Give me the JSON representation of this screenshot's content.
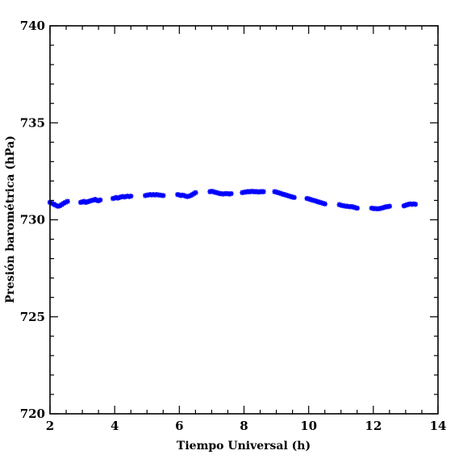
{
  "chart_data": {
    "type": "scatter",
    "title": "",
    "xlabel": "Tiempo Universal (h)",
    "ylabel": "Presión barométrica (hPa)",
    "xlim": [
      2,
      14
    ],
    "ylim": [
      720,
      740
    ],
    "x_ticks": [
      2,
      4,
      6,
      8,
      10,
      12,
      14
    ],
    "y_ticks": [
      720,
      725,
      730,
      735,
      740
    ],
    "x_minor_step": 0.5,
    "y_minor_step": 1,
    "grid": false,
    "legend": "none",
    "marker": "star",
    "color": "#0000ff",
    "series": [
      {
        "x": [
          2.0,
          2.06,
          2.12,
          2.18,
          2.24,
          2.3,
          2.36,
          2.42,
          2.48,
          2.54,
          2.95,
          3.0,
          3.05,
          3.1,
          3.15,
          3.2,
          3.25,
          3.3,
          3.35,
          3.4,
          3.45,
          3.5,
          3.55,
          3.95,
          4.0,
          4.05,
          4.1,
          4.15,
          4.2,
          4.25,
          4.3,
          4.35,
          4.4,
          4.45,
          4.5,
          4.95,
          5.0,
          5.05,
          5.1,
          5.15,
          5.2,
          5.25,
          5.3,
          5.35,
          5.4,
          5.45,
          5.5,
          5.95,
          6.0,
          6.05,
          6.1,
          6.15,
          6.2,
          6.25,
          6.3,
          6.35,
          6.4,
          6.45,
          6.5,
          6.95,
          7.0,
          7.05,
          7.1,
          7.15,
          7.2,
          7.25,
          7.3,
          7.35,
          7.4,
          7.45,
          7.5,
          7.55,
          7.6,
          7.95,
          8.0,
          8.05,
          8.1,
          8.15,
          8.2,
          8.25,
          8.3,
          8.35,
          8.4,
          8.45,
          8.5,
          8.55,
          8.6,
          8.95,
          9.0,
          9.05,
          9.1,
          9.15,
          9.2,
          9.25,
          9.3,
          9.35,
          9.4,
          9.45,
          9.5,
          9.55,
          9.95,
          10.0,
          10.05,
          10.1,
          10.15,
          10.2,
          10.25,
          10.3,
          10.35,
          10.4,
          10.45,
          10.5,
          10.95,
          11.0,
          11.05,
          11.1,
          11.15,
          11.2,
          11.25,
          11.3,
          11.35,
          11.4,
          11.45,
          11.5,
          11.95,
          12.0,
          12.05,
          12.1,
          12.15,
          12.2,
          12.25,
          12.3,
          12.35,
          12.4,
          12.45,
          12.5,
          12.95,
          13.0,
          13.05,
          13.1,
          13.15,
          13.2,
          13.25,
          13.3
        ],
        "y": [
          730.9,
          730.85,
          730.8,
          730.75,
          730.7,
          730.72,
          730.78,
          730.85,
          730.9,
          730.95,
          730.9,
          730.92,
          730.95,
          730.9,
          730.92,
          730.95,
          730.98,
          731.0,
          731.02,
          731.05,
          731.0,
          730.98,
          731.02,
          731.1,
          731.12,
          731.15,
          731.12,
          731.15,
          731.18,
          731.2,
          731.18,
          731.2,
          731.22,
          731.2,
          731.22,
          731.25,
          731.27,
          731.28,
          731.3,
          731.28,
          731.3,
          731.28,
          731.3,
          731.28,
          731.27,
          731.26,
          731.25,
          731.3,
          731.28,
          731.25,
          731.27,
          731.25,
          731.22,
          731.2,
          731.22,
          731.25,
          731.3,
          731.35,
          731.4,
          731.45,
          731.47,
          731.45,
          731.42,
          731.4,
          731.38,
          731.35,
          731.35,
          731.33,
          731.35,
          731.35,
          731.35,
          731.33,
          731.35,
          731.4,
          731.42,
          731.43,
          731.45,
          731.45,
          731.45,
          731.47,
          731.45,
          731.45,
          731.45,
          731.43,
          731.45,
          731.45,
          731.45,
          731.45,
          731.43,
          731.4,
          731.38,
          731.35,
          731.32,
          731.3,
          731.27,
          731.25,
          731.22,
          731.2,
          731.17,
          731.15,
          731.1,
          731.08,
          731.05,
          731.02,
          731.0,
          730.98,
          730.95,
          730.92,
          730.9,
          730.87,
          730.85,
          730.82,
          730.78,
          730.75,
          730.73,
          730.72,
          730.7,
          730.7,
          730.68,
          730.68,
          730.67,
          730.65,
          730.62,
          730.6,
          730.6,
          730.58,
          730.58,
          730.57,
          730.57,
          730.58,
          730.6,
          730.62,
          730.65,
          730.67,
          730.68,
          730.7,
          730.72,
          730.75,
          730.78,
          730.8,
          730.82,
          730.8,
          730.82,
          730.8
        ]
      }
    ]
  }
}
